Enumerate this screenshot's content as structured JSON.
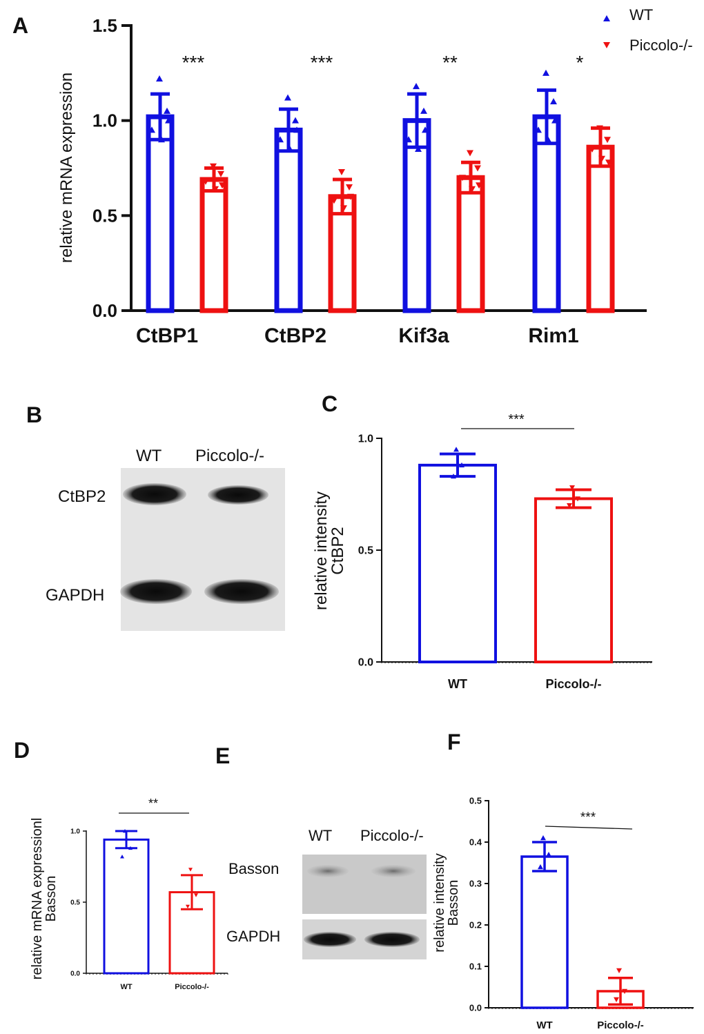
{
  "colors": {
    "wt": "#1010e0",
    "ko": "#ee1111",
    "axis": "#111111"
  },
  "panels": {
    "A": "A",
    "B": "B",
    "C": "C",
    "D": "D",
    "E": "E",
    "F": "F"
  },
  "legend": [
    {
      "label": "WT",
      "color": "#1010e0",
      "marker": "triangle-up"
    },
    {
      "label": "Piccolo-/-",
      "color": "#ee1111",
      "marker": "triangle-down"
    }
  ],
  "blot_B": {
    "lanes": [
      "WT",
      "Piccolo-/-"
    ],
    "bands": [
      "CtBP2",
      "GAPDH"
    ]
  },
  "blot_E": {
    "lanes": [
      "WT",
      "Piccolo-/-"
    ],
    "bands": [
      "Basson",
      "GAPDH"
    ]
  },
  "chart_data": [
    {
      "id": "A",
      "type": "bar",
      "title": "",
      "xlabel": "",
      "ylabel": "relative mRNA expression",
      "ylim": [
        0,
        1.5
      ],
      "yticks": [
        "0.0",
        "0.5",
        "1.0",
        "1.5"
      ],
      "categories": [
        "CtBP1",
        "CtBP2",
        "Kif3a",
        "Rim1"
      ],
      "series": [
        {
          "name": "WT",
          "values": [
            1.02,
            0.95,
            1.0,
            1.02
          ],
          "errors": [
            0.12,
            0.11,
            0.14,
            0.14
          ]
        },
        {
          "name": "Piccolo-/-",
          "values": [
            0.69,
            0.6,
            0.7,
            0.86
          ],
          "errors": [
            0.06,
            0.09,
            0.08,
            0.1
          ]
        }
      ],
      "points": {
        "WT": [
          [
            1.22,
            1.05,
            0.95,
            0.9,
            1.0
          ],
          [
            1.12,
            1.0,
            0.9,
            0.85,
            0.95
          ],
          [
            1.18,
            1.05,
            0.9,
            0.85,
            0.95
          ],
          [
            1.25,
            1.1,
            0.95,
            0.9,
            1.0
          ]
        ],
        "Piccolo-/-": [
          [
            0.76,
            0.72,
            0.68,
            0.64,
            0.66
          ],
          [
            0.73,
            0.65,
            0.58,
            0.54,
            0.6
          ],
          [
            0.83,
            0.75,
            0.7,
            0.64,
            0.66
          ],
          [
            0.96,
            0.9,
            0.85,
            0.8,
            0.78
          ]
        ]
      },
      "significance": [
        "***",
        "***",
        "**",
        "*"
      ]
    },
    {
      "id": "C",
      "type": "bar",
      "ylabel": "relative intensity",
      "ylabel2": "CtBP2",
      "ylim": [
        0,
        1.0
      ],
      "yticks": [
        "0.0",
        "0.5",
        "1.0"
      ],
      "categories": [
        "WT",
        "Piccolo-/-"
      ],
      "values": [
        0.88,
        0.73
      ],
      "errors": [
        0.05,
        0.04
      ],
      "points": [
        [
          0.95,
          0.88,
          0.83
        ],
        [
          0.78,
          0.73,
          0.7
        ]
      ],
      "significance": "***"
    },
    {
      "id": "D",
      "type": "bar",
      "ylabel": "relative mRNA expressionl",
      "ylabel2": "Basson",
      "ylim": [
        0,
        1.0
      ],
      "yticks": [
        "0.0",
        "0.5",
        "1.0"
      ],
      "categories": [
        "WT",
        "Piccolo-/-"
      ],
      "values": [
        0.94,
        0.57
      ],
      "errors": [
        0.06,
        0.12
      ],
      "points": [
        [
          1.0,
          0.88,
          0.82
        ],
        [
          0.73,
          0.55,
          0.47
        ]
      ],
      "significance": "**"
    },
    {
      "id": "F",
      "type": "bar",
      "ylabel": "relative intensity",
      "ylabel2": "Basson",
      "ylim": [
        0,
        0.5
      ],
      "yticks": [
        "0.0",
        "0.1",
        "0.2",
        "0.3",
        "0.4",
        "0.5"
      ],
      "categories": [
        "WT",
        "Piccolo-/-"
      ],
      "values": [
        0.365,
        0.04
      ],
      "errors": [
        0.035,
        0.032
      ],
      "points": [
        [
          0.41,
          0.37,
          0.34
        ],
        [
          0.09,
          0.04,
          0.02
        ]
      ],
      "significance": "***"
    }
  ]
}
